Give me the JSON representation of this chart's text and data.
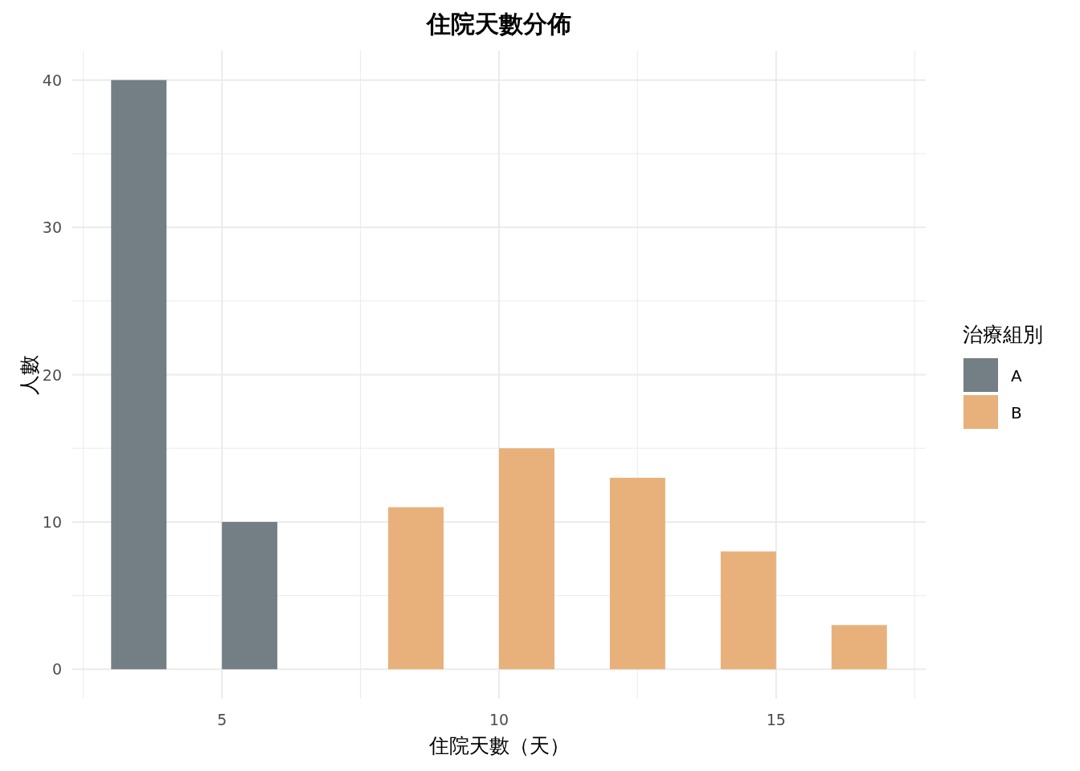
{
  "chart_data": {
    "type": "bar",
    "title": "住院天數分佈",
    "xlabel": "住院天數（天）",
    "ylabel": "人數",
    "legend_title": "治療組別",
    "series": [
      {
        "name": "A",
        "color": "#737f84",
        "x": [
          3.5,
          5.5
        ],
        "values": [
          40,
          10
        ]
      },
      {
        "name": "B",
        "color": "#e8b07a",
        "x": [
          8.5,
          10.5,
          12.5,
          14.5,
          16.5
        ],
        "values": [
          11,
          15,
          13,
          8,
          3
        ]
      }
    ],
    "xlim": [
      2.3,
      17.7
    ],
    "ylim": [
      -2,
      42
    ],
    "xticks": [
      {
        "value": 2.5,
        "label": null
      },
      5,
      {
        "value": 7.5,
        "label": null
      },
      10,
      {
        "value": 12.5,
        "label": null
      },
      15,
      {
        "value": 17.5,
        "label": null
      }
    ],
    "yticks": [
      0,
      {
        "value": 5,
        "label": null
      },
      10,
      {
        "value": 15,
        "label": null
      },
      20,
      {
        "value": 25,
        "label": null
      },
      30,
      {
        "value": 35,
        "label": null
      },
      40
    ],
    "grid": true,
    "legend": "right"
  }
}
